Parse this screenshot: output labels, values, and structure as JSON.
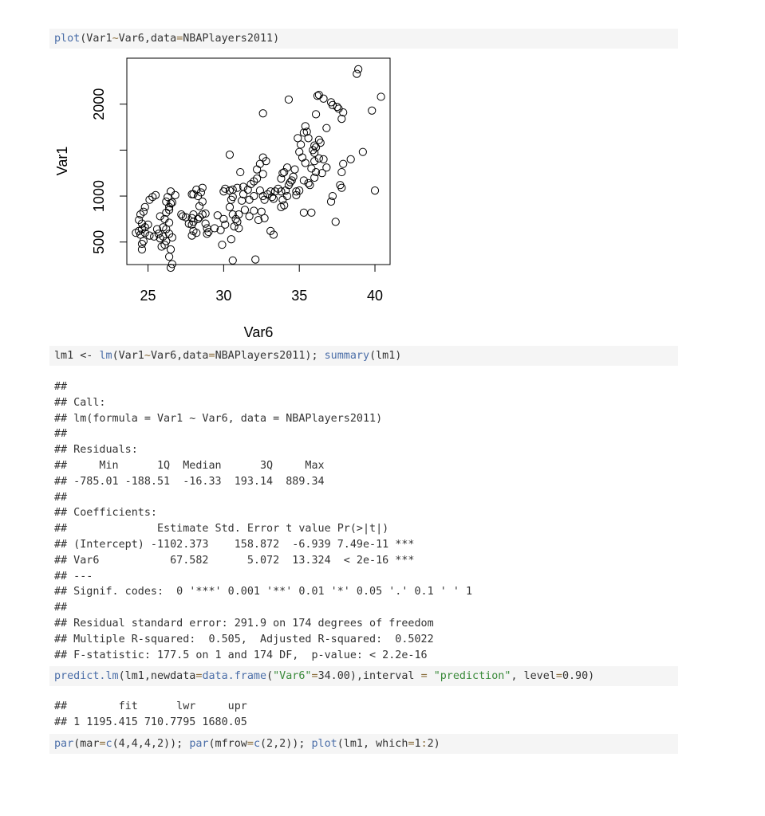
{
  "code_blocks": {
    "plot_cmd": "plot(Var1~Var6,data=NBAPlayers2011)",
    "lm_cmd": "lm1 <- lm(Var1~Var6,data=NBAPlayers2011); summary(lm1)",
    "predict_cmd": "predict.lm(lm1,newdata=data.frame(\"Var6\"=34.00),interval = \"prediction\", level=0.90)",
    "par_cmd": "par(mar=c(4,4,4,2)); par(mfrow=c(2,2)); plot(lm1, which=1:2)"
  },
  "summary_output": [
    "##",
    "## Call:",
    "## lm(formula = Var1 ~ Var6, data = NBAPlayers2011)",
    "##",
    "## Residuals:",
    "##     Min      1Q  Median      3Q     Max",
    "## -785.01 -188.51  -16.33  193.14  889.34",
    "##",
    "## Coefficients:",
    "##              Estimate Std. Error t value Pr(>|t|)",
    "## (Intercept) -1102.373    158.872  -6.939 7.49e-11 ***",
    "## Var6           67.582      5.072  13.324  < 2e-16 ***",
    "## ---",
    "## Signif. codes:  0 '***' 0.001 '**' 0.01 '*' 0.05 '.' 0.1 ' ' 1",
    "##",
    "## Residual standard error: 291.9 on 174 degrees of freedom",
    "## Multiple R-squared:  0.505,  Adjusted R-squared:  0.5022",
    "## F-statistic: 177.5 on 1 and 174 DF,  p-value: < 2.2e-16"
  ],
  "predict_output": [
    "##        fit      lwr     upr",
    "## 1 1195.415 710.7795 1680.05"
  ],
  "chart_data": {
    "type": "scatter",
    "xlabel": "Var6",
    "ylabel": "Var1",
    "xlim": [
      23.6,
      41.0
    ],
    "ylim": [
      255,
      2500
    ],
    "x_ticks": [
      25,
      30,
      35,
      40
    ],
    "y_ticks": [
      500,
      1000,
      1500,
      2000
    ],
    "y_tick_labels": [
      "500",
      "1000",
      "",
      "2000"
    ],
    "grid": false,
    "points": [
      [
        38.9,
        2380
      ],
      [
        38.8,
        2330
      ],
      [
        40.4,
        2080
      ],
      [
        39.8,
        1930
      ],
      [
        37.5,
        1970
      ],
      [
        37.2,
        1990
      ],
      [
        37.1,
        2020
      ],
      [
        37.6,
        1950
      ],
      [
        36.6,
        2060
      ],
      [
        36.3,
        2100
      ],
      [
        36.2,
        2090
      ],
      [
        34.3,
        2050
      ],
      [
        32.6,
        1900
      ],
      [
        35.3,
        1690
      ],
      [
        35.6,
        1630
      ],
      [
        35.5,
        1700
      ],
      [
        35.4,
        1760
      ],
      [
        37.9,
        1910
      ],
      [
        37.8,
        1840
      ],
      [
        36.8,
        1740
      ],
      [
        36.1,
        1890
      ],
      [
        39.2,
        1480
      ],
      [
        38.4,
        1400
      ],
      [
        37.9,
        1350
      ],
      [
        37.8,
        1260
      ],
      [
        37.7,
        1120
      ],
      [
        37.8,
        1090
      ],
      [
        40.0,
        1060
      ],
      [
        37.1,
        940
      ],
      [
        37.2,
        1000
      ],
      [
        37.4,
        720
      ],
      [
        36.3,
        1610
      ],
      [
        36.4,
        1580
      ],
      [
        36.0,
        1550
      ],
      [
        36.1,
        1530
      ],
      [
        35.9,
        1500
      ],
      [
        36.0,
        1470
      ],
      [
        36.3,
        1410
      ],
      [
        36.0,
        1380
      ],
      [
        36.6,
        1400
      ],
      [
        36.8,
        1310
      ],
      [
        36.5,
        1250
      ],
      [
        36.1,
        1260
      ],
      [
        36.0,
        1200
      ],
      [
        35.6,
        1140
      ],
      [
        35.7,
        1120
      ],
      [
        35.3,
        1170
      ],
      [
        35.8,
        1300
      ],
      [
        35.4,
        1360
      ],
      [
        35.2,
        1420
      ],
      [
        35.0,
        1480
      ],
      [
        35.1,
        1560
      ],
      [
        34.9,
        1630
      ],
      [
        34.7,
        1290
      ],
      [
        34.6,
        1210
      ],
      [
        34.5,
        1170
      ],
      [
        34.4,
        1150
      ],
      [
        34.3,
        1120
      ],
      [
        34.0,
        1260
      ],
      [
        34.2,
        1310
      ],
      [
        33.8,
        1190
      ],
      [
        33.9,
        1250
      ],
      [
        33.6,
        1080
      ],
      [
        33.4,
        1050
      ],
      [
        33.8,
        1050
      ],
      [
        34.1,
        1060
      ],
      [
        34.8,
        1050
      ],
      [
        35.0,
        1060
      ],
      [
        34.8,
        1010
      ],
      [
        34.2,
        1000
      ],
      [
        33.9,
        960
      ],
      [
        34.0,
        900
      ],
      [
        33.8,
        880
      ],
      [
        35.3,
        820
      ],
      [
        35.8,
        820
      ],
      [
        32.6,
        1420
      ],
      [
        32.8,
        1380
      ],
      [
        32.4,
        1350
      ],
      [
        32.2,
        1290
      ],
      [
        32.6,
        1240
      ],
      [
        32.2,
        1190
      ],
      [
        32.0,
        1160
      ],
      [
        31.8,
        1130
      ],
      [
        31.6,
        1070
      ],
      [
        31.3,
        1100
      ],
      [
        30.9,
        1090
      ],
      [
        30.6,
        1070
      ],
      [
        30.4,
        1060
      ],
      [
        30.0,
        1050
      ],
      [
        30.1,
        1080
      ],
      [
        32.4,
        1060
      ],
      [
        32.6,
        1000
      ],
      [
        32.7,
        960
      ],
      [
        32.9,
        1020
      ],
      [
        33.1,
        1050
      ],
      [
        33.2,
        990
      ],
      [
        33.3,
        970
      ],
      [
        32.0,
        1000
      ],
      [
        31.7,
        960
      ],
      [
        31.3,
        1020
      ],
      [
        31.2,
        950
      ],
      [
        30.6,
        990
      ],
      [
        30.5,
        960
      ],
      [
        31.1,
        1260
      ],
      [
        30.4,
        1450
      ],
      [
        32.0,
        840
      ],
      [
        31.7,
        780
      ],
      [
        31.4,
        850
      ],
      [
        31.0,
        800
      ],
      [
        30.8,
        750
      ],
      [
        30.4,
        880
      ],
      [
        30.6,
        800
      ],
      [
        30.9,
        720
      ],
      [
        30.7,
        670
      ],
      [
        30.5,
        530
      ],
      [
        30.0,
        750
      ],
      [
        29.6,
        790
      ],
      [
        29.4,
        650
      ],
      [
        29.8,
        630
      ],
      [
        30.1,
        690
      ],
      [
        31.0,
        650
      ],
      [
        32.5,
        830
      ],
      [
        32.7,
        760
      ],
      [
        32.3,
        740
      ],
      [
        29.9,
        470
      ],
      [
        30.6,
        300
      ],
      [
        32.1,
        310
      ],
      [
        33.3,
        580
      ],
      [
        33.1,
        620
      ],
      [
        28.6,
        1090
      ],
      [
        28.5,
        1040
      ],
      [
        28.3,
        1000
      ],
      [
        28.2,
        1070
      ],
      [
        28.0,
        1020
      ],
      [
        27.9,
        1020
      ],
      [
        28.6,
        940
      ],
      [
        28.4,
        890
      ],
      [
        28.8,
        810
      ],
      [
        28.6,
        800
      ],
      [
        28.4,
        770
      ],
      [
        28.3,
        750
      ],
      [
        28.0,
        800
      ],
      [
        27.9,
        760
      ],
      [
        28.0,
        720
      ],
      [
        27.7,
        700
      ],
      [
        27.5,
        770
      ],
      [
        27.3,
        780
      ],
      [
        27.2,
        800
      ],
      [
        27.9,
        690
      ],
      [
        28.0,
        620
      ],
      [
        28.2,
        600
      ],
      [
        27.9,
        570
      ],
      [
        28.8,
        700
      ],
      [
        28.9,
        650
      ],
      [
        29.0,
        610
      ],
      [
        28.9,
        590
      ],
      [
        26.8,
        1010
      ],
      [
        26.5,
        1050
      ],
      [
        26.3,
        990
      ],
      [
        26.2,
        940
      ],
      [
        26.4,
        880
      ],
      [
        26.5,
        920
      ],
      [
        26.6,
        930
      ],
      [
        26.4,
        850
      ],
      [
        26.2,
        820
      ],
      [
        25.8,
        780
      ],
      [
        26.1,
        750
      ],
      [
        26.4,
        710
      ],
      [
        26.0,
        660
      ],
      [
        26.2,
        640
      ],
      [
        26.4,
        590
      ],
      [
        26.6,
        550
      ],
      [
        26.2,
        510
      ],
      [
        26.0,
        560
      ],
      [
        25.7,
        590
      ],
      [
        26.1,
        470
      ],
      [
        26.5,
        420
      ],
      [
        26.4,
        340
      ],
      [
        26.6,
        260
      ],
      [
        26.5,
        220
      ],
      [
        25.9,
        450
      ],
      [
        25.5,
        1010
      ],
      [
        25.3,
        990
      ],
      [
        25.1,
        960
      ],
      [
        24.8,
        880
      ],
      [
        24.7,
        830
      ],
      [
        24.5,
        800
      ],
      [
        24.4,
        740
      ],
      [
        24.6,
        700
      ],
      [
        25.0,
        690
      ],
      [
        24.8,
        660
      ],
      [
        24.6,
        640
      ],
      [
        24.4,
        620
      ],
      [
        24.2,
        600
      ],
      [
        24.5,
        580
      ],
      [
        24.8,
        600
      ],
      [
        25.1,
        570
      ],
      [
        25.4,
        560
      ],
      [
        25.8,
        540
      ],
      [
        24.7,
        510
      ],
      [
        24.6,
        480
      ],
      [
        24.6,
        420
      ],
      [
        25.6,
        640
      ]
    ]
  }
}
